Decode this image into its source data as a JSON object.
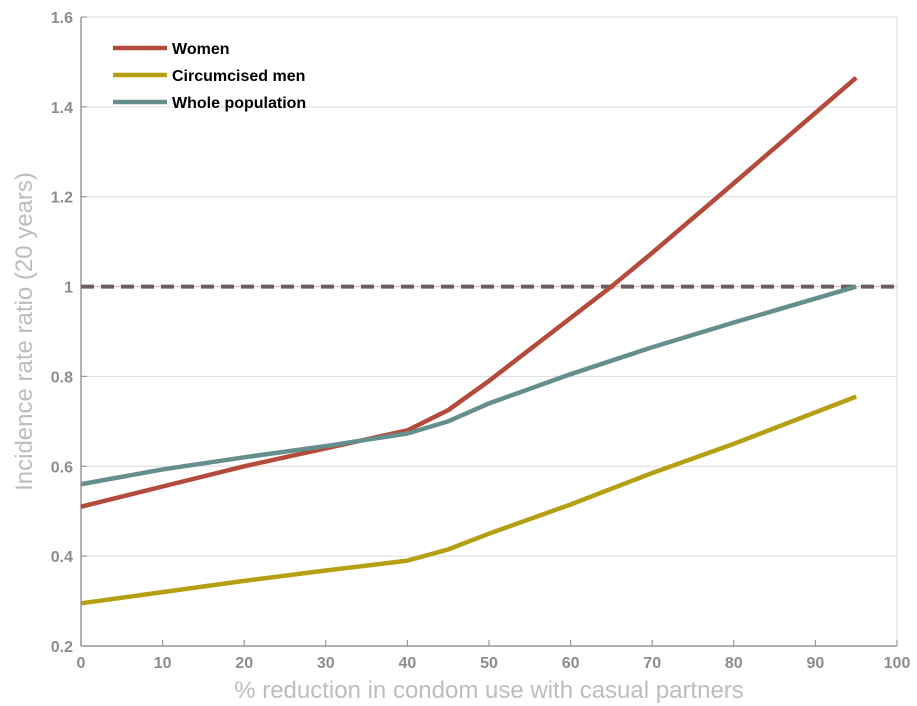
{
  "chart_data": {
    "type": "line",
    "title": "",
    "xlabel": "% reduction in condom use with casual partners",
    "ylabel": "Incidence rate ratio (20 years)",
    "xlim": [
      0,
      100
    ],
    "ylim": [
      0.2,
      1.6
    ],
    "x_ticks": [
      0,
      10,
      20,
      30,
      40,
      50,
      60,
      70,
      80,
      90,
      100
    ],
    "y_ticks": [
      0.2,
      0.4,
      0.6,
      0.8,
      1,
      1.2,
      1.4,
      1.6
    ],
    "x_tick_labels": [
      "0",
      "10",
      "20",
      "30",
      "40",
      "50",
      "60",
      "70",
      "80",
      "90",
      "100"
    ],
    "y_tick_labels": [
      "0.2",
      "0.4",
      "0.6",
      "0.8",
      "1",
      "1.2",
      "1.4",
      "1.6"
    ],
    "grid": "horizontal",
    "legend_position": "top-left",
    "reference_line": {
      "y": 1.0,
      "style": "dashed",
      "color": "#666064"
    },
    "series": [
      {
        "name": "Women",
        "color": "#b44a3a",
        "x": [
          0,
          10,
          20,
          30,
          40,
          45,
          50,
          60,
          65,
          70,
          80,
          95
        ],
        "y": [
          0.51,
          0.555,
          0.6,
          0.64,
          0.68,
          0.725,
          0.79,
          0.93,
          1.0,
          1.075,
          1.23,
          1.465
        ]
      },
      {
        "name": "Circumcised men",
        "color": "#b5a013",
        "x": [
          0,
          10,
          20,
          30,
          40,
          45,
          50,
          60,
          70,
          80,
          95
        ],
        "y": [
          0.295,
          0.32,
          0.345,
          0.368,
          0.39,
          0.415,
          0.45,
          0.515,
          0.585,
          0.65,
          0.755
        ]
      },
      {
        "name": "Whole population",
        "color": "#648f8d",
        "x": [
          0,
          10,
          20,
          30,
          40,
          45,
          50,
          60,
          70,
          80,
          95
        ],
        "y": [
          0.56,
          0.593,
          0.62,
          0.645,
          0.673,
          0.7,
          0.74,
          0.805,
          0.865,
          0.92,
          1.0
        ]
      }
    ]
  }
}
